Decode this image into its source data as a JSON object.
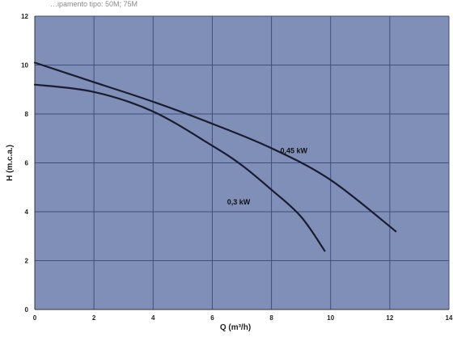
{
  "page": {
    "title_fragment": "…ipamento tipo: 50M; 75M"
  },
  "colors": {
    "plot_background": "#7f8fb8",
    "grid": "#3f4f7f",
    "curve": "#1a1c2e",
    "axis_text": "#222222"
  },
  "chart_data": {
    "type": "line",
    "xlabel": "Q (m³/h)",
    "ylabel": "H (m.c.a.)",
    "xlim": [
      0,
      14
    ],
    "ylim": [
      0,
      12
    ],
    "xticks": [
      0,
      2,
      4,
      6,
      8,
      10,
      12,
      14
    ],
    "yticks": [
      0,
      2,
      4,
      6,
      8,
      10,
      12
    ],
    "grid": true,
    "series": [
      {
        "name": "0,45 kW",
        "x": [
          0,
          2,
          4,
          6,
          8,
          10,
          12.2
        ],
        "y": [
          10.1,
          9.3,
          8.5,
          7.6,
          6.6,
          5.3,
          3.2
        ]
      },
      {
        "name": "0,3 kW",
        "x": [
          0,
          2,
          4,
          6,
          7,
          8,
          9,
          9.8
        ],
        "y": [
          9.2,
          8.9,
          8.1,
          6.7,
          5.9,
          4.9,
          3.8,
          2.4
        ]
      }
    ],
    "annotations": [
      {
        "text": "0,45 kW",
        "x": 8.3,
        "y": 6.4
      },
      {
        "text": "0,3 kW",
        "x": 6.5,
        "y": 4.3
      }
    ]
  }
}
